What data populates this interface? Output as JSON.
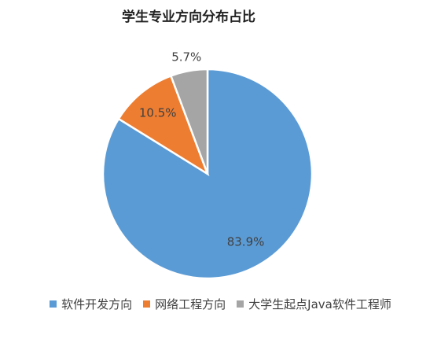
{
  "chart_data": {
    "type": "pie",
    "title": "学生专业方向分布占比",
    "categories": [
      "软件开发方向",
      "网络工程方向",
      "大学生起点Java软件工程师"
    ],
    "values": [
      83.9,
      10.5,
      5.7
    ],
    "value_labels": [
      "83.9%",
      "10.5%",
      "5.7%"
    ],
    "colors": [
      "#5b9bd5",
      "#ed7d31",
      "#a5a5a5"
    ],
    "legend": "bottom"
  }
}
